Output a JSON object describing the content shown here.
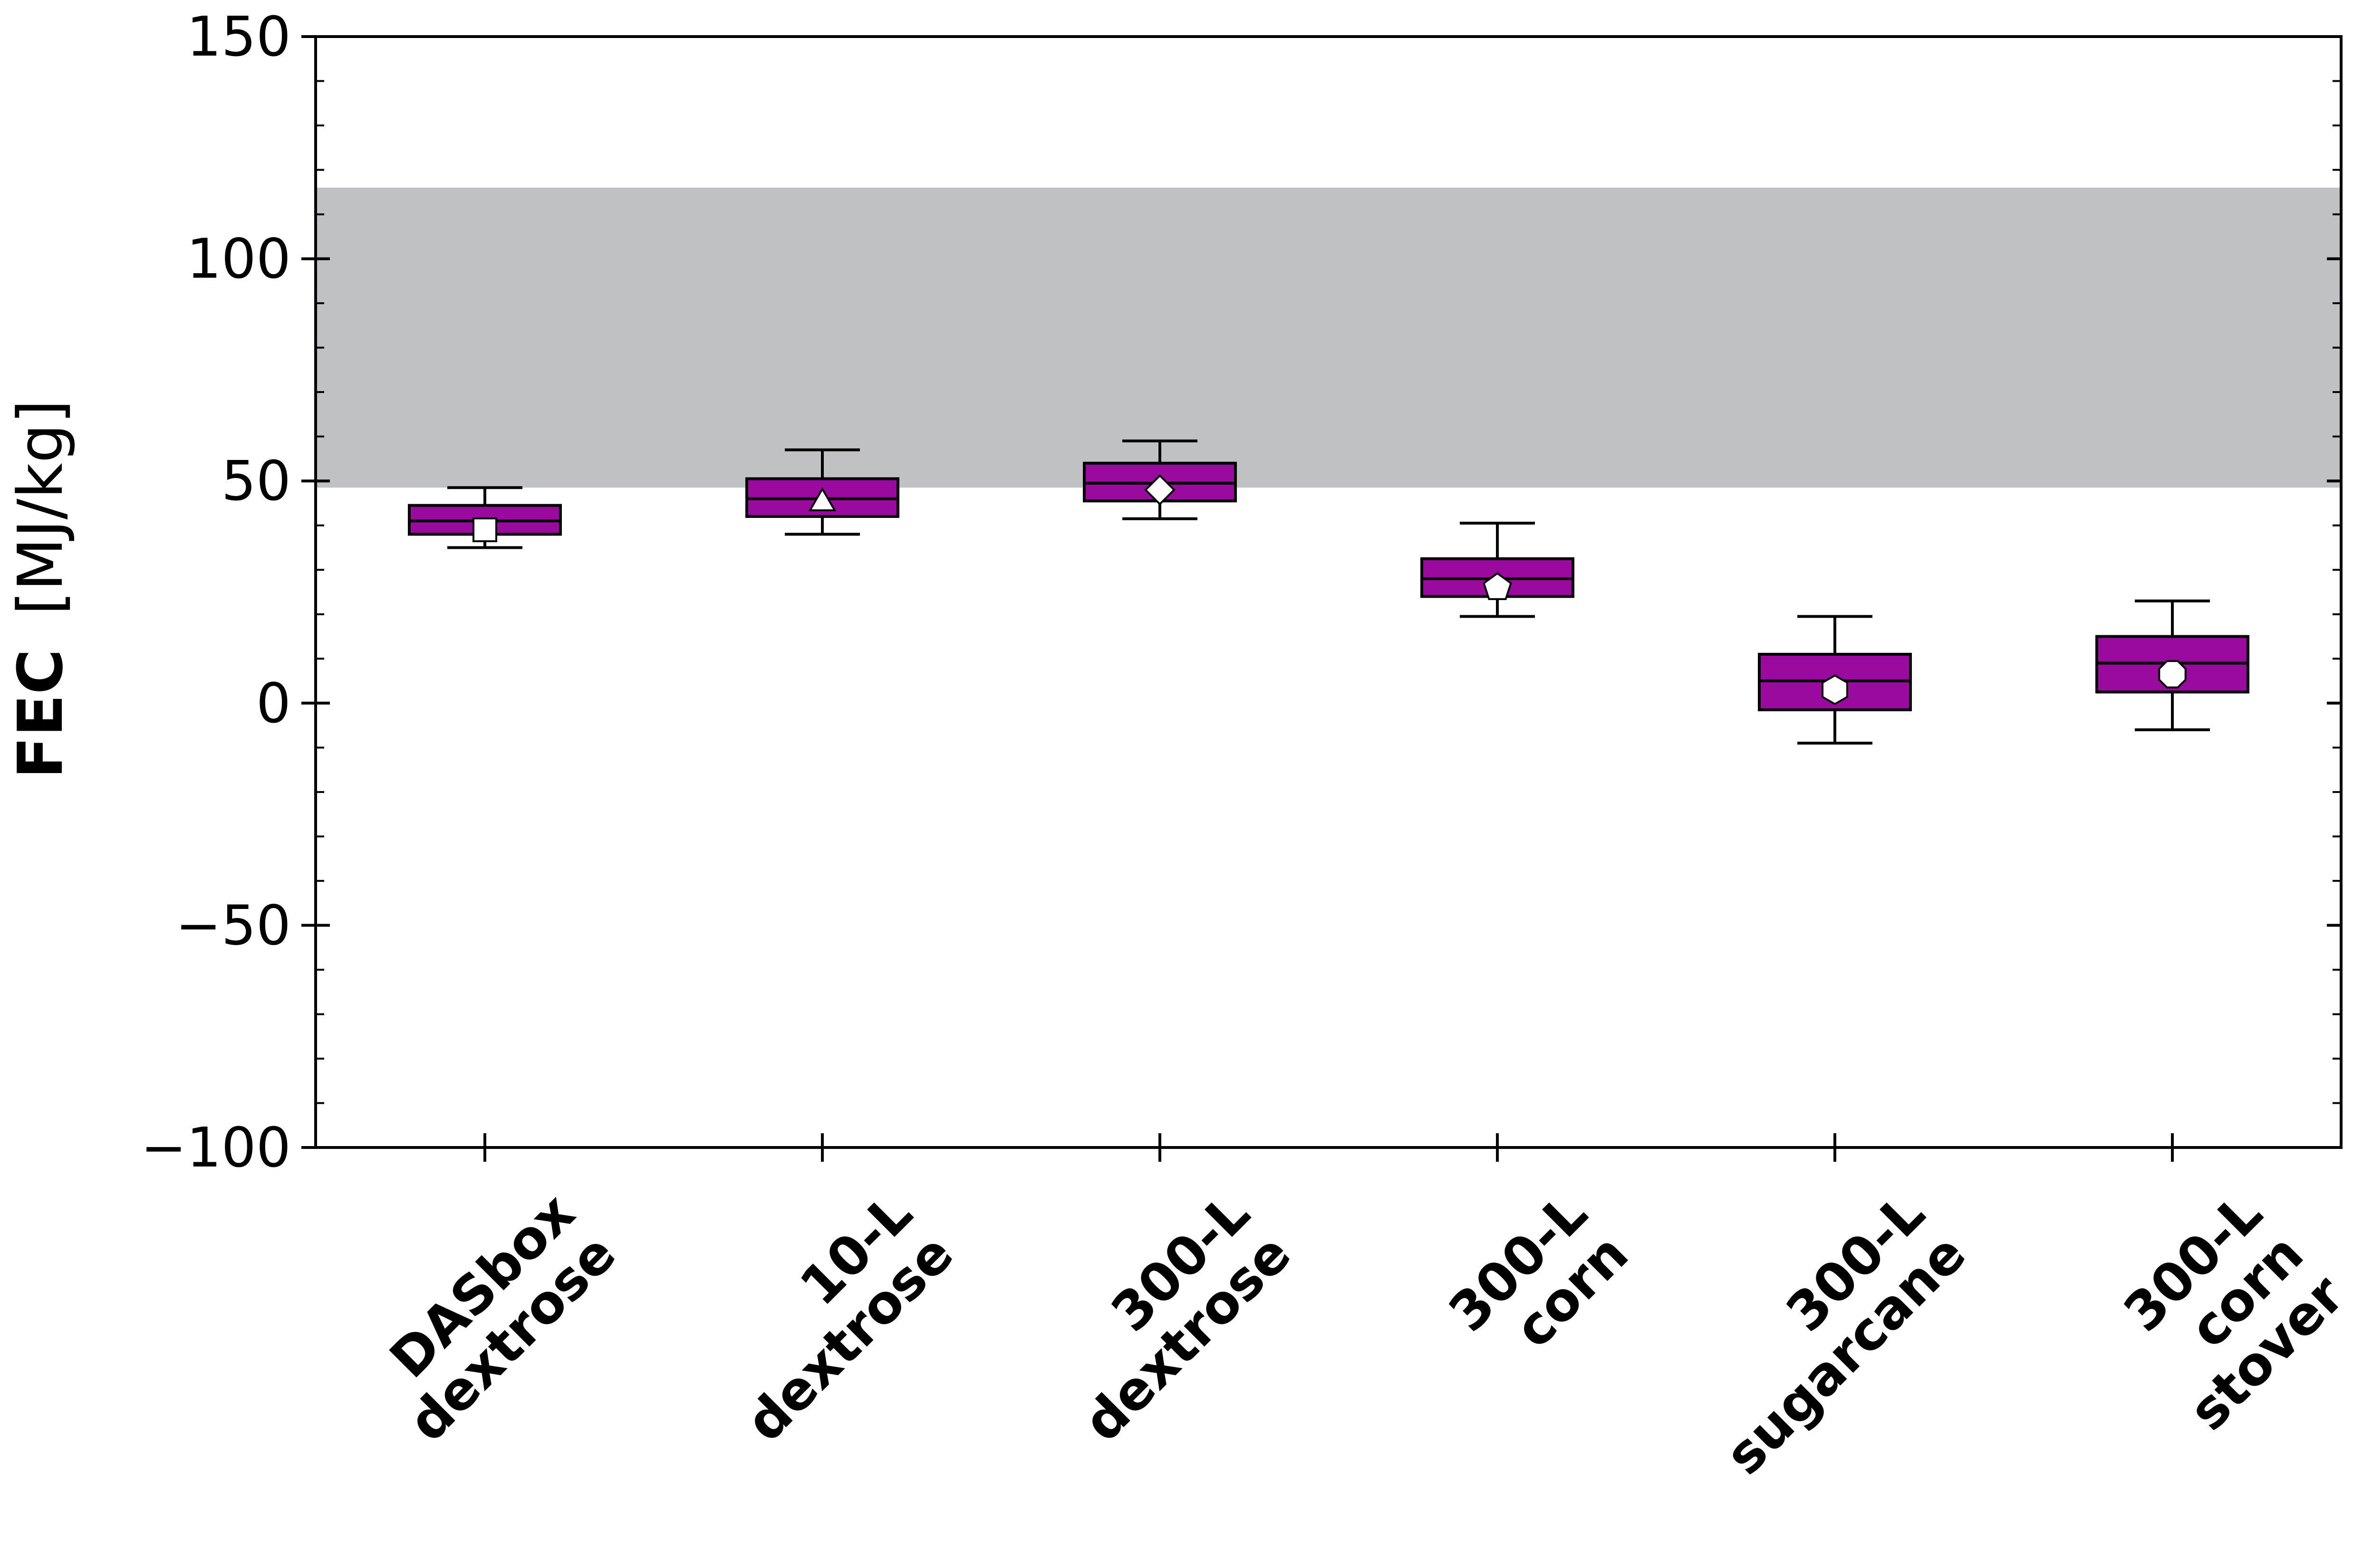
{
  "chart_data": {
    "type": "box",
    "ylabel": {
      "bold": "FEC",
      "unit": "[MJ/kg]"
    },
    "ylim": [
      -100,
      150
    ],
    "yticks": [
      -100,
      -50,
      0,
      50,
      100,
      150
    ],
    "ytick_labels": [
      "−100",
      "−50",
      "0",
      "50",
      "100",
      "150"
    ],
    "yminor_step": 10,
    "grid": false,
    "shaded_band": {
      "y_low": 48.5,
      "y_high": 116,
      "color": "#c0c1c3"
    },
    "box_color": "#9b0a9e",
    "categories": [
      {
        "lines": [
          "DASbox",
          "dextrose"
        ],
        "whisker_low": 35,
        "q1": 38,
        "median": 41,
        "q3": 44.5,
        "whisker_high": 48.5,
        "mean": 39,
        "marker": "square"
      },
      {
        "lines": [
          "10-L",
          "dextrose"
        ],
        "whisker_low": 38,
        "q1": 42,
        "median": 46,
        "q3": 50.5,
        "whisker_high": 57,
        "mean": 45,
        "marker": "triangle"
      },
      {
        "lines": [
          "300-L",
          "dextrose"
        ],
        "whisker_low": 41.5,
        "q1": 45.5,
        "median": 49.5,
        "q3": 54,
        "whisker_high": 59,
        "mean": 48,
        "marker": "diamond"
      },
      {
        "lines": [
          "300-L",
          "corn"
        ],
        "whisker_low": 19.5,
        "q1": 24,
        "median": 28,
        "q3": 32.5,
        "whisker_high": 40.5,
        "mean": 26,
        "marker": "pentagon"
      },
      {
        "lines": [
          "300-L",
          "sugarcane"
        ],
        "whisker_low": -9,
        "q1": -1.5,
        "median": 5,
        "q3": 11,
        "whisker_high": 19.5,
        "mean": 3,
        "marker": "hexagon"
      },
      {
        "lines": [
          "300-L",
          "corn",
          "stover"
        ],
        "whisker_low": -6,
        "q1": 2.5,
        "median": 9,
        "q3": 15,
        "whisker_high": 23,
        "mean": 6.5,
        "marker": "octagon"
      }
    ]
  }
}
